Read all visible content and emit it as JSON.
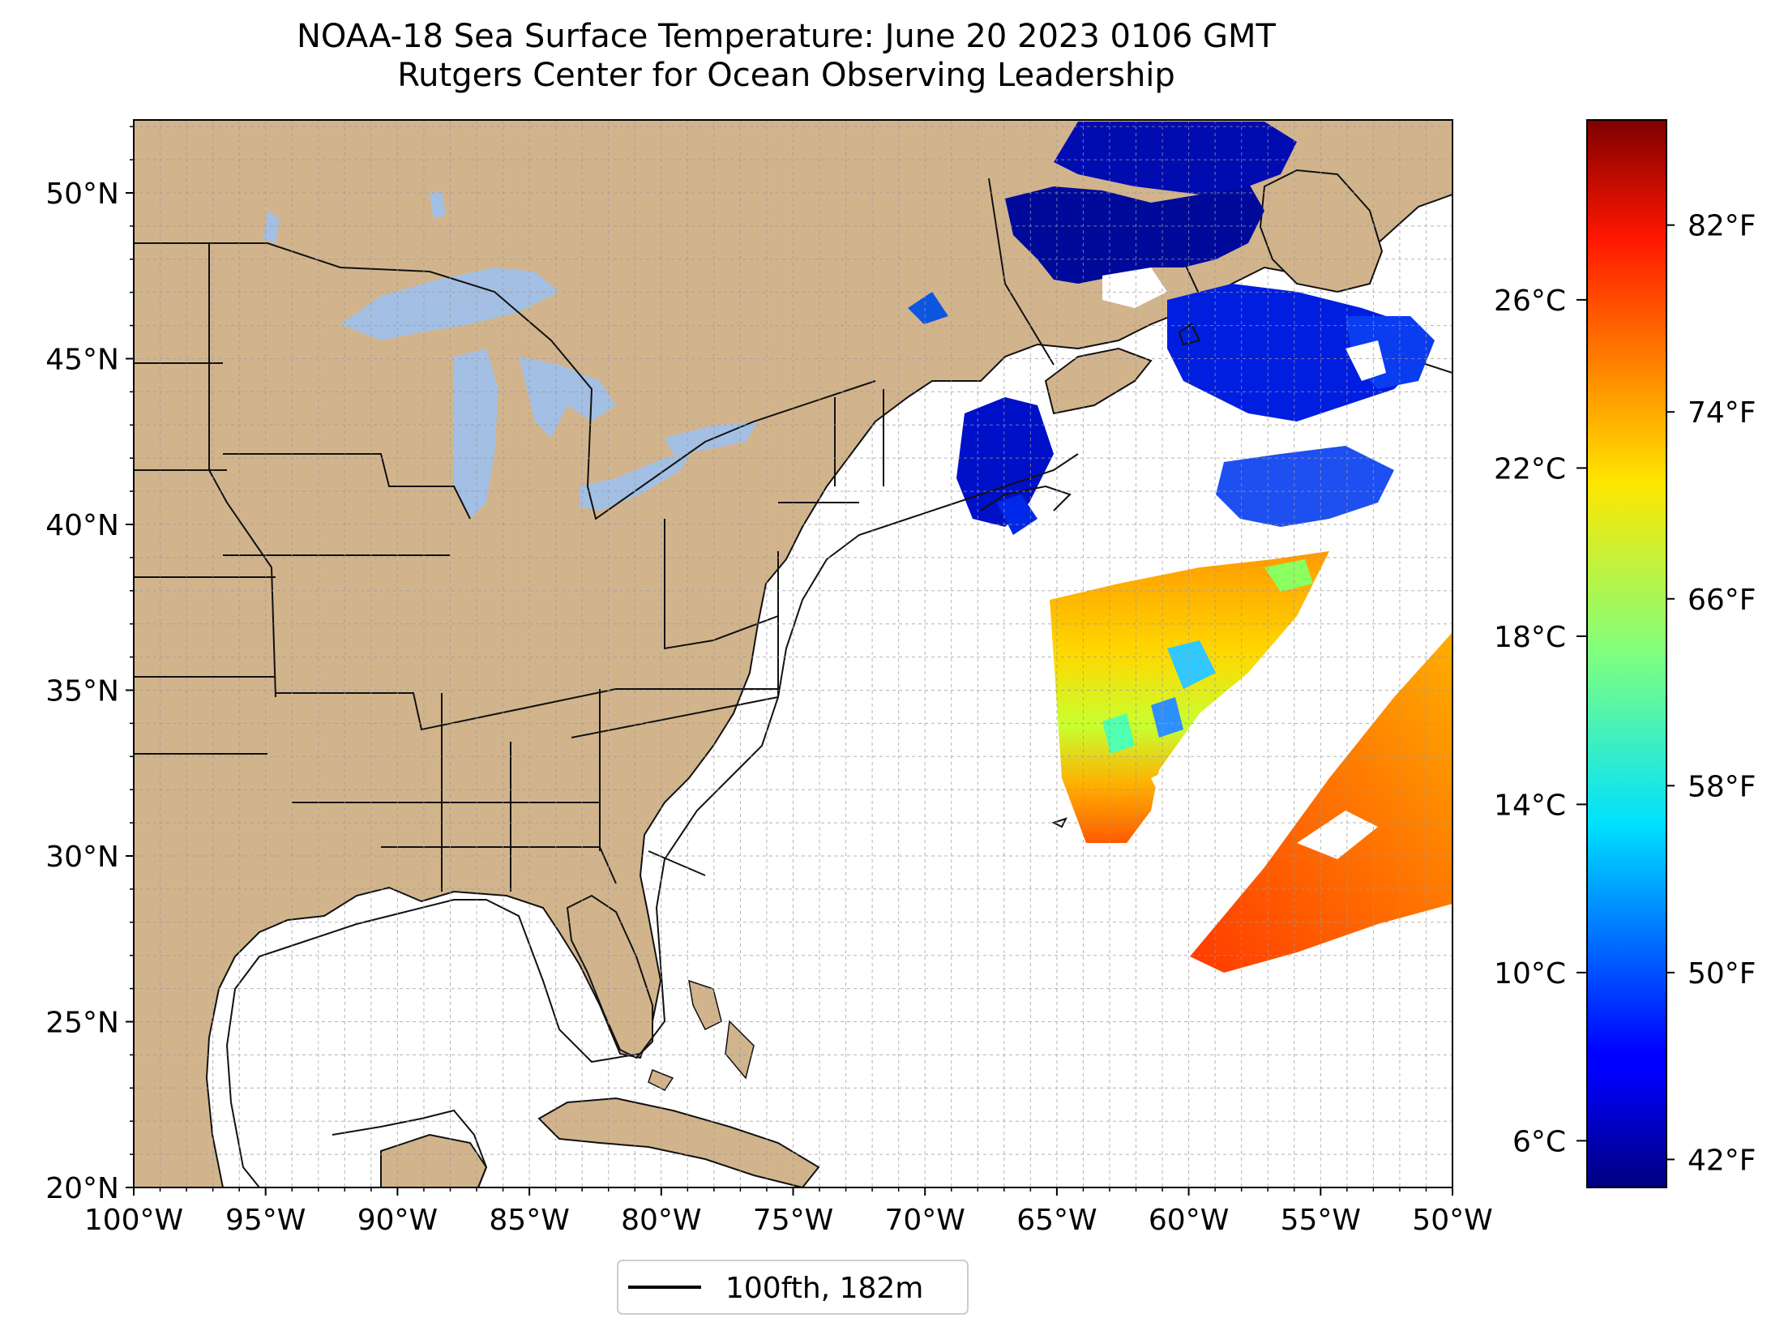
{
  "title": {
    "line1": "NOAA-18 Sea Surface Temperature: June 20 2023 0106 GMT",
    "line2": "Rutgers Center for Ocean Observing Leadership"
  },
  "map": {
    "lon_range": [
      -100,
      -50
    ],
    "lat_range": [
      20,
      52.2
    ],
    "lat_ticks": [
      {
        "value": 20,
        "label": "20°N"
      },
      {
        "value": 25,
        "label": "25°N"
      },
      {
        "value": 30,
        "label": "30°N"
      },
      {
        "value": 35,
        "label": "35°N"
      },
      {
        "value": 40,
        "label": "40°N"
      },
      {
        "value": 45,
        "label": "45°N"
      },
      {
        "value": 50,
        "label": "50°N"
      }
    ],
    "lon_ticks": [
      {
        "value": -100,
        "label": "100°W"
      },
      {
        "value": -95,
        "label": "95°W"
      },
      {
        "value": -90,
        "label": "90°W"
      },
      {
        "value": -85,
        "label": "85°W"
      },
      {
        "value": -80,
        "label": "80°W"
      },
      {
        "value": -75,
        "label": "75°W"
      },
      {
        "value": -70,
        "label": "70°W"
      },
      {
        "value": -65,
        "label": "65°W"
      },
      {
        "value": -60,
        "label": "60°W"
      },
      {
        "value": -55,
        "label": "55°W"
      },
      {
        "value": -50,
        "label": "50°W"
      }
    ],
    "grid": "dashed, 1° spacing",
    "colors": {
      "land": "#d2b48c",
      "lakes": "#a3bfe3",
      "ocean": "#ffffff"
    }
  },
  "legend": {
    "label": "100fth, 182m",
    "placement": "bottom-center"
  },
  "colorbar": {
    "colormap": "jet",
    "celsius_ticks": [
      "26°C",
      "22°C",
      "18°C",
      "14°C",
      "10°C",
      "6°C"
    ],
    "celsius_values": [
      26,
      22,
      18,
      14,
      10,
      6
    ],
    "fahrenheit_ticks": [
      "82°F",
      "74°F",
      "66°F",
      "58°F",
      "50°F",
      "42°F"
    ],
    "fahrenheit_values": [
      82,
      74,
      66,
      58,
      50,
      42
    ],
    "range_f": [
      40.8,
      86.5
    ]
  }
}
